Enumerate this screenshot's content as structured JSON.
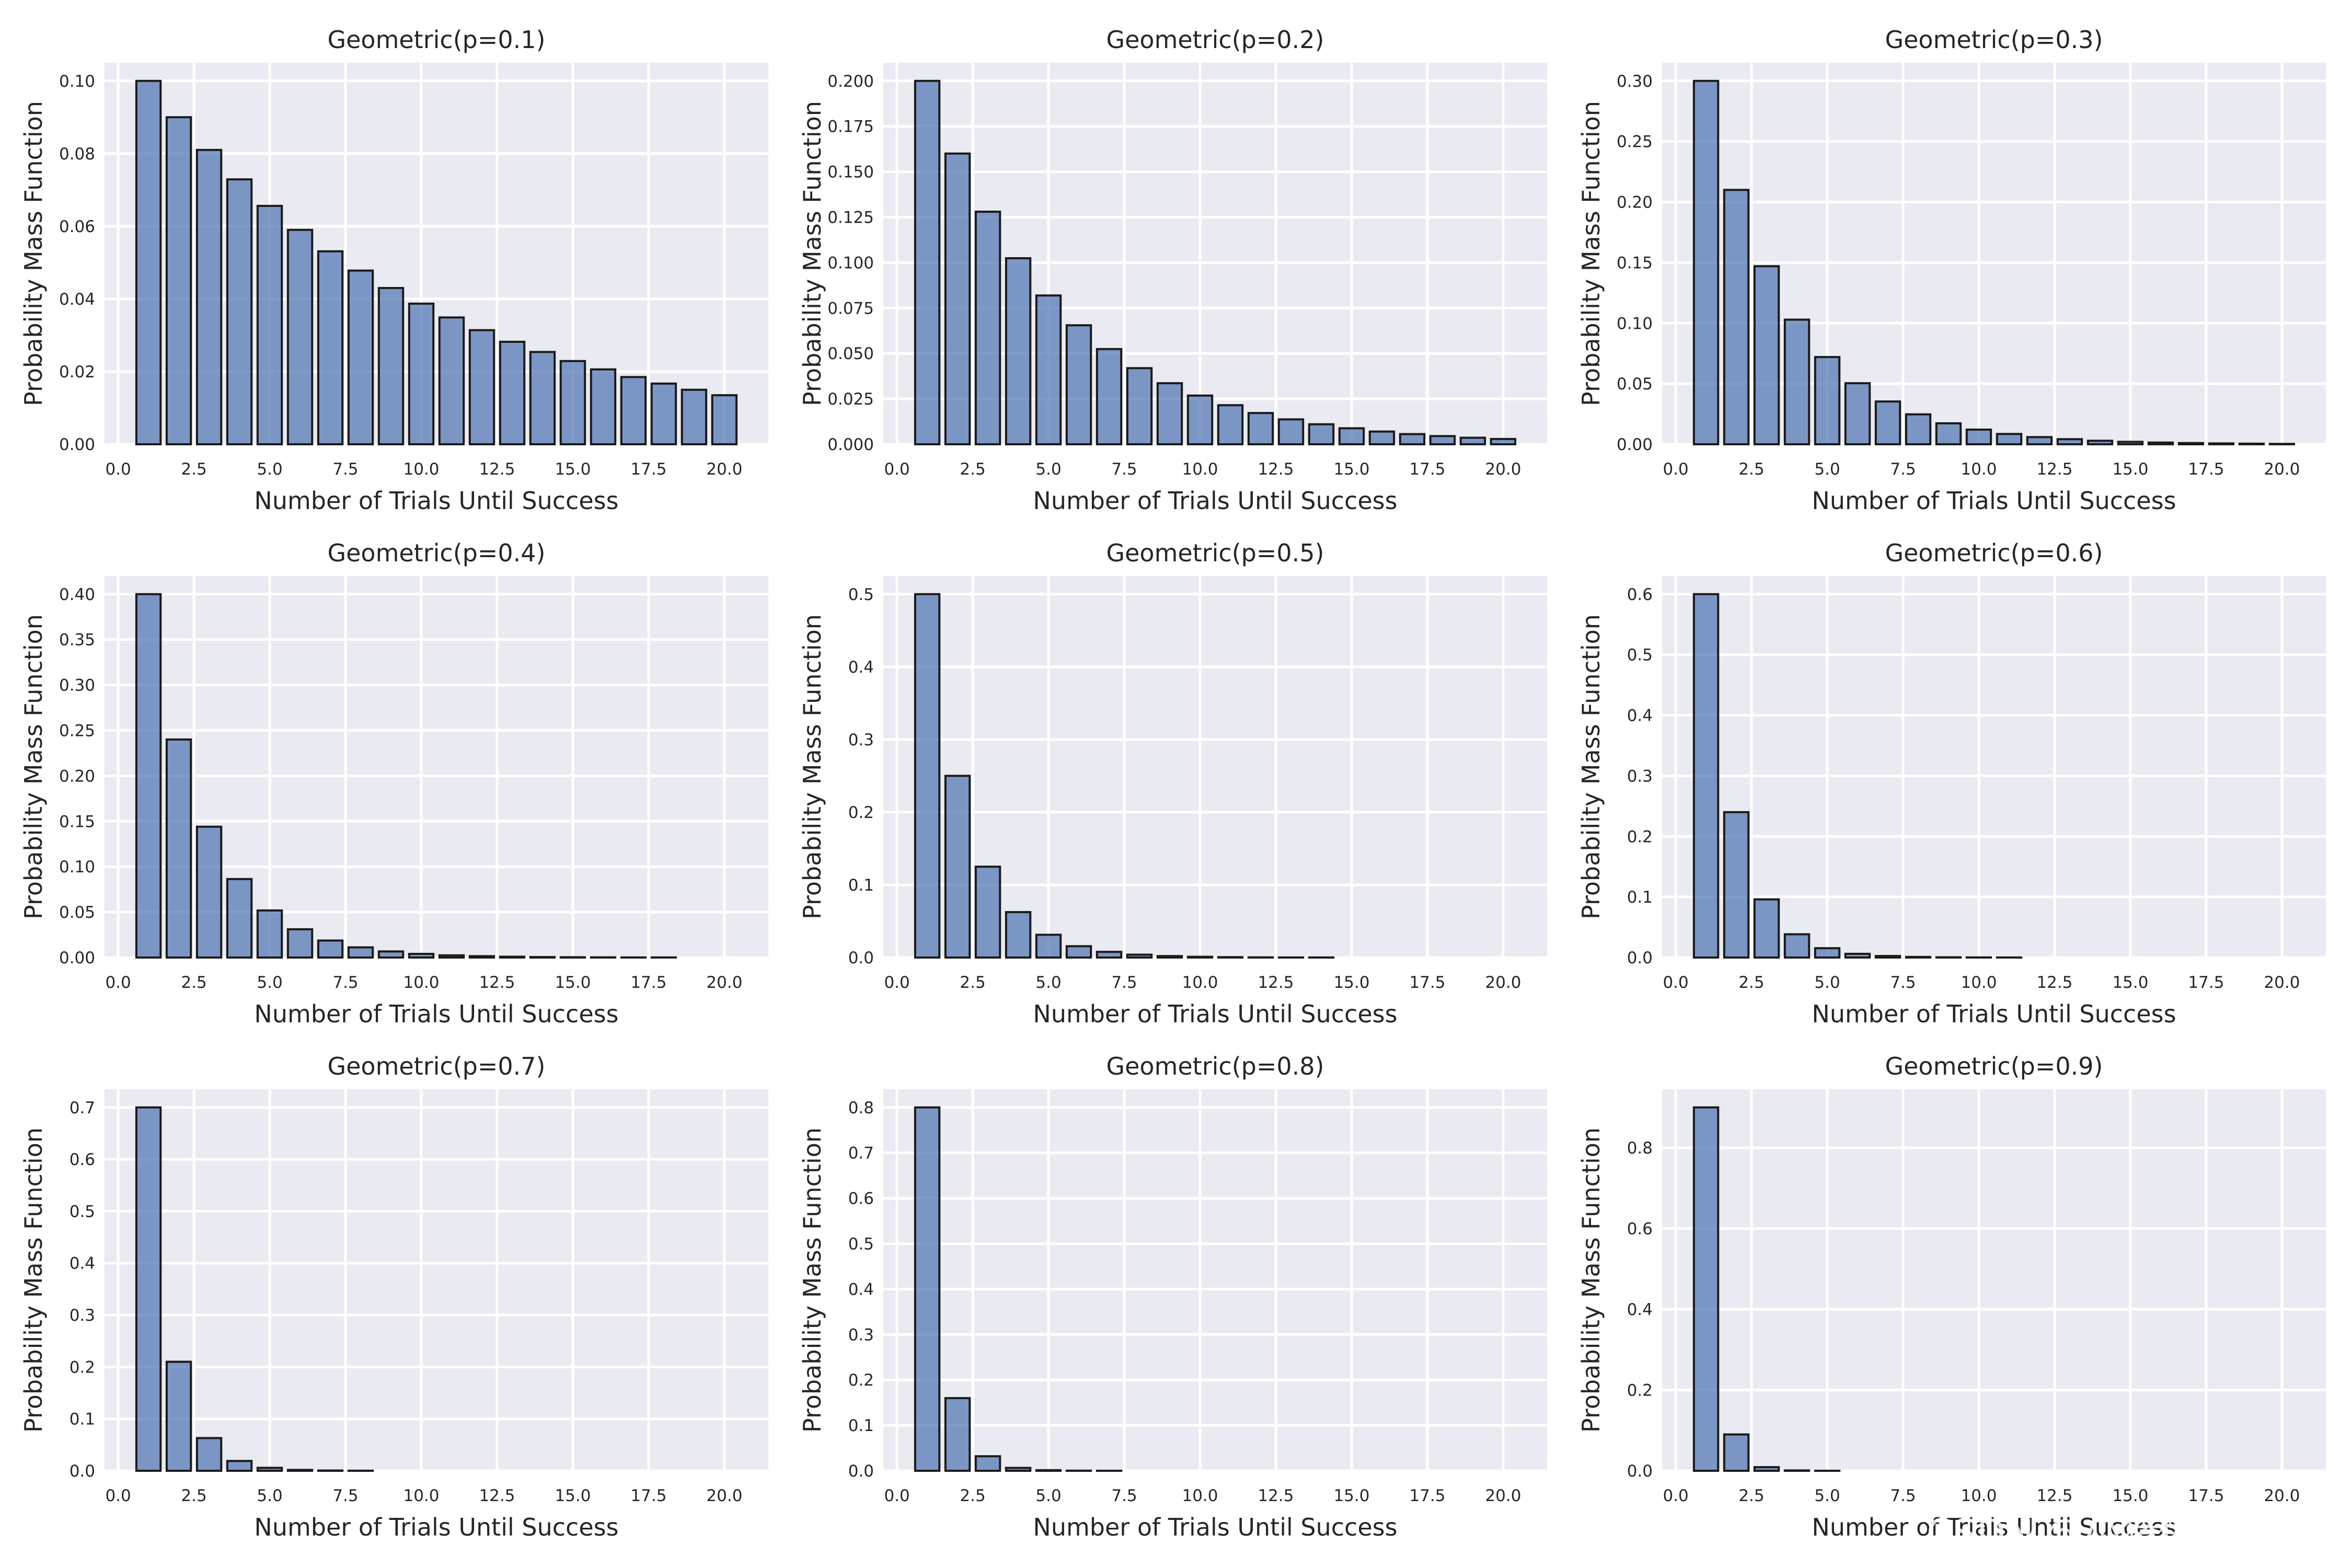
{
  "figure": {
    "watermark": "CSDN @小猪快跑爱摄影"
  },
  "chart_data": [
    {
      "type": "bar",
      "title": "Geometric(p=0.1)",
      "xlabel": "Number of Trials Until Success",
      "ylabel": "Probability Mass Function",
      "x": [
        1,
        2,
        3,
        4,
        5,
        6,
        7,
        8,
        9,
        10,
        11,
        12,
        13,
        14,
        15,
        16,
        17,
        18,
        19,
        20
      ],
      "values": [
        0.1,
        0.09,
        0.081,
        0.0729,
        0.0656,
        0.059,
        0.0531,
        0.0478,
        0.043,
        0.0387,
        0.0349,
        0.0314,
        0.0282,
        0.0254,
        0.0229,
        0.0206,
        0.0185,
        0.0167,
        0.015,
        0.0135
      ],
      "xlim": [
        -0.45,
        21.45
      ],
      "ylim": [
        0,
        0.105
      ],
      "xticks": [
        0.0,
        2.5,
        5.0,
        7.5,
        10.0,
        12.5,
        15.0,
        17.5,
        20.0
      ],
      "xtick_labels": [
        "0.0",
        "2.5",
        "5.0",
        "7.5",
        "10.0",
        "12.5",
        "15.0",
        "17.5",
        "20.0"
      ],
      "yticks": [
        0,
        0.02,
        0.04,
        0.06,
        0.08,
        0.1
      ],
      "ytick_labels": [
        "0.00",
        "0.02",
        "0.04",
        "0.06",
        "0.08",
        "0.10"
      ],
      "grid": true
    },
    {
      "type": "bar",
      "title": "Geometric(p=0.2)",
      "xlabel": "Number of Trials Until Success",
      "ylabel": "Probability Mass Function",
      "x": [
        1,
        2,
        3,
        4,
        5,
        6,
        7,
        8,
        9,
        10,
        11,
        12,
        13,
        14,
        15,
        16,
        17,
        18,
        19,
        20
      ],
      "values": [
        0.2,
        0.16,
        0.128,
        0.1024,
        0.0819,
        0.0655,
        0.0524,
        0.0419,
        0.0336,
        0.0268,
        0.0215,
        0.0172,
        0.0137,
        0.011,
        0.0088,
        0.007,
        0.0056,
        0.0045,
        0.0036,
        0.0029
      ],
      "xlim": [
        -0.45,
        21.45
      ],
      "ylim": [
        0,
        0.21
      ],
      "xticks": [
        0.0,
        2.5,
        5.0,
        7.5,
        10.0,
        12.5,
        15.0,
        17.5,
        20.0
      ],
      "xtick_labels": [
        "0.0",
        "2.5",
        "5.0",
        "7.5",
        "10.0",
        "12.5",
        "15.0",
        "17.5",
        "20.0"
      ],
      "yticks": [
        0,
        0.025,
        0.05,
        0.075,
        0.1,
        0.125,
        0.15,
        0.175,
        0.2
      ],
      "ytick_labels": [
        "0.000",
        "0.025",
        "0.050",
        "0.075",
        "0.100",
        "0.125",
        "0.150",
        "0.175",
        "0.200"
      ],
      "grid": true
    },
    {
      "type": "bar",
      "title": "Geometric(p=0.3)",
      "xlabel": "Number of Trials Until Success",
      "ylabel": "Probability Mass Function",
      "x": [
        1,
        2,
        3,
        4,
        5,
        6,
        7,
        8,
        9,
        10,
        11,
        12,
        13,
        14,
        15,
        16,
        17,
        18,
        19,
        20
      ],
      "values": [
        0.3,
        0.21,
        0.147,
        0.1029,
        0.072,
        0.0504,
        0.0353,
        0.0247,
        0.0173,
        0.0121,
        0.0085,
        0.0059,
        0.0042,
        0.0029,
        0.002,
        0.0014,
        0.001,
        0.0007,
        0.0005,
        0.0003
      ],
      "xlim": [
        -0.45,
        21.45
      ],
      "ylim": [
        0,
        0.315
      ],
      "xticks": [
        0.0,
        2.5,
        5.0,
        7.5,
        10.0,
        12.5,
        15.0,
        17.5,
        20.0
      ],
      "xtick_labels": [
        "0.0",
        "2.5",
        "5.0",
        "7.5",
        "10.0",
        "12.5",
        "15.0",
        "17.5",
        "20.0"
      ],
      "yticks": [
        0,
        0.05,
        0.1,
        0.15,
        0.2,
        0.25,
        0.3
      ],
      "ytick_labels": [
        "0.00",
        "0.05",
        "0.10",
        "0.15",
        "0.20",
        "0.25",
        "0.30"
      ],
      "grid": true
    },
    {
      "type": "bar",
      "title": "Geometric(p=0.4)",
      "xlabel": "Number of Trials Until Success",
      "ylabel": "Probability Mass Function",
      "x": [
        1,
        2,
        3,
        4,
        5,
        6,
        7,
        8,
        9,
        10,
        11,
        12,
        13,
        14,
        15,
        16,
        17,
        18,
        19,
        20
      ],
      "values": [
        0.4,
        0.24,
        0.144,
        0.0864,
        0.0518,
        0.0311,
        0.0187,
        0.0112,
        0.0067,
        0.004,
        0.0024,
        0.0015,
        0.0009,
        0.0005,
        0.0003,
        0.0002,
        0.0001,
        0.0001,
        0.0,
        0.0
      ],
      "xlim": [
        -0.45,
        21.45
      ],
      "ylim": [
        0,
        0.42
      ],
      "xticks": [
        0.0,
        2.5,
        5.0,
        7.5,
        10.0,
        12.5,
        15.0,
        17.5,
        20.0
      ],
      "xtick_labels": [
        "0.0",
        "2.5",
        "5.0",
        "7.5",
        "10.0",
        "12.5",
        "15.0",
        "17.5",
        "20.0"
      ],
      "yticks": [
        0,
        0.05,
        0.1,
        0.15,
        0.2,
        0.25,
        0.3,
        0.35,
        0.4
      ],
      "ytick_labels": [
        "0.00",
        "0.05",
        "0.10",
        "0.15",
        "0.20",
        "0.25",
        "0.30",
        "0.35",
        "0.40"
      ],
      "grid": true
    },
    {
      "type": "bar",
      "title": "Geometric(p=0.5)",
      "xlabel": "Number of Trials Until Success",
      "ylabel": "Probability Mass Function",
      "x": [
        1,
        2,
        3,
        4,
        5,
        6,
        7,
        8,
        9,
        10,
        11,
        12,
        13,
        14,
        15,
        16,
        17,
        18,
        19,
        20
      ],
      "values": [
        0.5,
        0.25,
        0.125,
        0.0625,
        0.0313,
        0.0156,
        0.0078,
        0.0039,
        0.002,
        0.001,
        0.0005,
        0.0002,
        0.0001,
        0.0001,
        0.0,
        0.0,
        0.0,
        0.0,
        0.0,
        0.0
      ],
      "xlim": [
        -0.45,
        21.45
      ],
      "ylim": [
        0,
        0.525
      ],
      "xticks": [
        0.0,
        2.5,
        5.0,
        7.5,
        10.0,
        12.5,
        15.0,
        17.5,
        20.0
      ],
      "xtick_labels": [
        "0.0",
        "2.5",
        "5.0",
        "7.5",
        "10.0",
        "12.5",
        "15.0",
        "17.5",
        "20.0"
      ],
      "yticks": [
        0,
        0.1,
        0.2,
        0.3,
        0.4,
        0.5
      ],
      "ytick_labels": [
        "0.0",
        "0.1",
        "0.2",
        "0.3",
        "0.4",
        "0.5"
      ],
      "grid": true
    },
    {
      "type": "bar",
      "title": "Geometric(p=0.6)",
      "xlabel": "Number of Trials Until Success",
      "ylabel": "Probability Mass Function",
      "x": [
        1,
        2,
        3,
        4,
        5,
        6,
        7,
        8,
        9,
        10,
        11,
        12,
        13,
        14,
        15,
        16,
        17,
        18,
        19,
        20
      ],
      "values": [
        0.6,
        0.24,
        0.096,
        0.0384,
        0.0154,
        0.0061,
        0.0025,
        0.001,
        0.0004,
        0.0002,
        0.0001,
        0.0,
        0.0,
        0.0,
        0.0,
        0.0,
        0.0,
        0.0,
        0.0,
        0.0
      ],
      "xlim": [
        -0.45,
        21.45
      ],
      "ylim": [
        0,
        0.63
      ],
      "xticks": [
        0.0,
        2.5,
        5.0,
        7.5,
        10.0,
        12.5,
        15.0,
        17.5,
        20.0
      ],
      "xtick_labels": [
        "0.0",
        "2.5",
        "5.0",
        "7.5",
        "10.0",
        "12.5",
        "15.0",
        "17.5",
        "20.0"
      ],
      "yticks": [
        0,
        0.1,
        0.2,
        0.3,
        0.4,
        0.5,
        0.6
      ],
      "ytick_labels": [
        "0.0",
        "0.1",
        "0.2",
        "0.3",
        "0.4",
        "0.5",
        "0.6"
      ],
      "grid": true
    },
    {
      "type": "bar",
      "title": "Geometric(p=0.7)",
      "xlabel": "Number of Trials Until Success",
      "ylabel": "Probability Mass Function",
      "x": [
        1,
        2,
        3,
        4,
        5,
        6,
        7,
        8,
        9,
        10,
        11,
        12,
        13,
        14,
        15,
        16,
        17,
        18,
        19,
        20
      ],
      "values": [
        0.7,
        0.21,
        0.063,
        0.0189,
        0.0057,
        0.0017,
        0.0005,
        0.0002,
        0.0,
        0.0,
        0.0,
        0.0,
        0.0,
        0.0,
        0.0,
        0.0,
        0.0,
        0.0,
        0.0,
        0.0
      ],
      "xlim": [
        -0.45,
        21.45
      ],
      "ylim": [
        0,
        0.735
      ],
      "xticks": [
        0.0,
        2.5,
        5.0,
        7.5,
        10.0,
        12.5,
        15.0,
        17.5,
        20.0
      ],
      "xtick_labels": [
        "0.0",
        "2.5",
        "5.0",
        "7.5",
        "10.0",
        "12.5",
        "15.0",
        "17.5",
        "20.0"
      ],
      "yticks": [
        0,
        0.1,
        0.2,
        0.3,
        0.4,
        0.5,
        0.6,
        0.7
      ],
      "ytick_labels": [
        "0.0",
        "0.1",
        "0.2",
        "0.3",
        "0.4",
        "0.5",
        "0.6",
        "0.7"
      ],
      "grid": true
    },
    {
      "type": "bar",
      "title": "Geometric(p=0.8)",
      "xlabel": "Number of Trials Until Success",
      "ylabel": "Probability Mass Function",
      "x": [
        1,
        2,
        3,
        4,
        5,
        6,
        7,
        8,
        9,
        10,
        11,
        12,
        13,
        14,
        15,
        16,
        17,
        18,
        19,
        20
      ],
      "values": [
        0.8,
        0.16,
        0.032,
        0.0064,
        0.0013,
        0.0003,
        0.0001,
        0.0,
        0.0,
        0.0,
        0.0,
        0.0,
        0.0,
        0.0,
        0.0,
        0.0,
        0.0,
        0.0,
        0.0,
        0.0
      ],
      "xlim": [
        -0.45,
        21.45
      ],
      "ylim": [
        0,
        0.84
      ],
      "xticks": [
        0.0,
        2.5,
        5.0,
        7.5,
        10.0,
        12.5,
        15.0,
        17.5,
        20.0
      ],
      "xtick_labels": [
        "0.0",
        "2.5",
        "5.0",
        "7.5",
        "10.0",
        "12.5",
        "15.0",
        "17.5",
        "20.0"
      ],
      "yticks": [
        0,
        0.1,
        0.2,
        0.3,
        0.4,
        0.5,
        0.6,
        0.7,
        0.8
      ],
      "ytick_labels": [
        "0.0",
        "0.1",
        "0.2",
        "0.3",
        "0.4",
        "0.5",
        "0.6",
        "0.7",
        "0.8"
      ],
      "grid": true
    },
    {
      "type": "bar",
      "title": "Geometric(p=0.9)",
      "xlabel": "Number of Trials Until Success",
      "ylabel": "Probability Mass Function",
      "x": [
        1,
        2,
        3,
        4,
        5,
        6,
        7,
        8,
        9,
        10,
        11,
        12,
        13,
        14,
        15,
        16,
        17,
        18,
        19,
        20
      ],
      "values": [
        0.9,
        0.09,
        0.009,
        0.0009,
        0.0001,
        0.0,
        0.0,
        0.0,
        0.0,
        0.0,
        0.0,
        0.0,
        0.0,
        0.0,
        0.0,
        0.0,
        0.0,
        0.0,
        0.0,
        0.0
      ],
      "xlim": [
        -0.45,
        21.45
      ],
      "ylim": [
        0,
        0.945
      ],
      "xticks": [
        0.0,
        2.5,
        5.0,
        7.5,
        10.0,
        12.5,
        15.0,
        17.5,
        20.0
      ],
      "xtick_labels": [
        "0.0",
        "2.5",
        "5.0",
        "7.5",
        "10.0",
        "12.5",
        "15.0",
        "17.5",
        "20.0"
      ],
      "yticks": [
        0,
        0.2,
        0.4,
        0.6,
        0.8
      ],
      "ytick_labels": [
        "0.0",
        "0.2",
        "0.4",
        "0.6",
        "0.8"
      ],
      "grid": true
    }
  ]
}
